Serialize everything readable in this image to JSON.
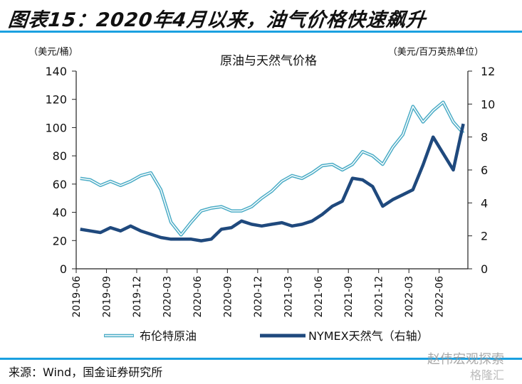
{
  "figure": {
    "title": "图表15：2020年4月以来，油气价格快速飙升",
    "source": "来源：Wind，国金证券研究所",
    "watermark": "赵伟宏观探索",
    "watermark2": "格隆汇",
    "rule_color": "#1aa0e0"
  },
  "chart_data": {
    "type": "line",
    "title": "原油与天然气价格",
    "ylabel_left": "（美元/桶）",
    "ylabel_right": "（美元/百万英热单位）",
    "ylim_left": [
      0,
      140
    ],
    "ylim_right": [
      0,
      12
    ],
    "yticks_left": [
      "0",
      "20",
      "40",
      "60",
      "80",
      "100",
      "120",
      "140"
    ],
    "yticks_right": [
      "0",
      "2",
      "4",
      "6",
      "8",
      "10",
      "12"
    ],
    "xticks": [
      "2019-06",
      "2019-09",
      "2019-12",
      "2020-03",
      "2020-06",
      "2020-09",
      "2020-12",
      "2021-03",
      "2021-06",
      "2021-09",
      "2021-12",
      "2022-03",
      "2022-06"
    ],
    "x_range": [
      "2019-06",
      "2022-08"
    ],
    "grid": false,
    "legend_position": "bottom",
    "x": [
      "2019-06",
      "2019-07",
      "2019-08",
      "2019-09",
      "2019-10",
      "2019-11",
      "2019-12",
      "2020-01",
      "2020-02",
      "2020-03",
      "2020-04",
      "2020-05",
      "2020-06",
      "2020-07",
      "2020-08",
      "2020-09",
      "2020-10",
      "2020-11",
      "2020-12",
      "2021-01",
      "2021-02",
      "2021-03",
      "2021-04",
      "2021-05",
      "2021-06",
      "2021-07",
      "2021-08",
      "2021-09",
      "2021-10",
      "2021-11",
      "2021-12",
      "2022-01",
      "2022-02",
      "2022-03",
      "2022-04",
      "2022-05",
      "2022-06",
      "2022-07",
      "2022-08"
    ],
    "series": [
      {
        "name": "布伦特原油",
        "axis": "left",
        "color": "#4bacc6",
        "style": "double-line",
        "values": [
          64,
          63,
          59,
          62,
          59,
          62,
          66,
          68,
          56,
          33,
          24,
          33,
          41,
          43,
          44,
          41,
          41,
          44,
          50,
          55,
          62,
          66,
          64,
          68,
          73,
          74,
          70,
          74,
          83,
          80,
          74,
          86,
          95,
          115,
          104,
          112,
          118,
          104,
          96
        ]
      },
      {
        "name": "NYMEX天然气（右轴）",
        "axis": "right",
        "color": "#1f497d",
        "style": "thick",
        "values": [
          2.4,
          2.3,
          2.2,
          2.5,
          2.3,
          2.6,
          2.3,
          2.1,
          1.9,
          1.8,
          1.8,
          1.8,
          1.7,
          1.8,
          2.4,
          2.5,
          2.9,
          2.7,
          2.6,
          2.7,
          2.8,
          2.6,
          2.7,
          2.9,
          3.3,
          3.8,
          4.1,
          5.5,
          5.4,
          5.0,
          3.8,
          4.2,
          4.5,
          4.8,
          6.3,
          8.0,
          7.0,
          6.0,
          8.8
        ]
      }
    ]
  }
}
